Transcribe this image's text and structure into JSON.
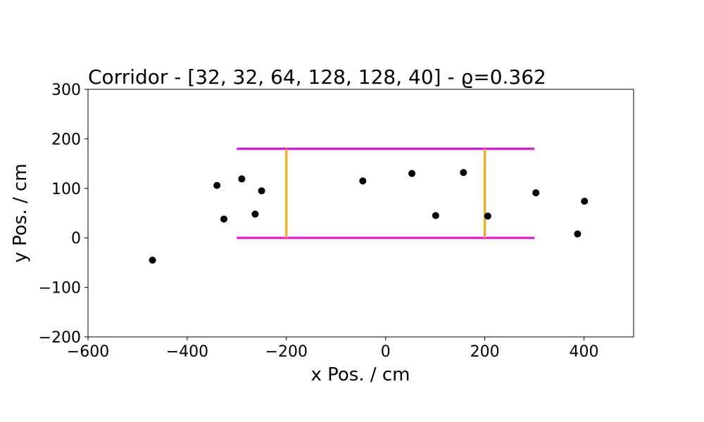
{
  "chart_data": {
    "type": "scatter",
    "title": "Corridor - [32, 32, 64, 128, 128, 40] - ϱ=0.362",
    "xlabel": "x Pos. / cm",
    "ylabel": "y Pos. / cm",
    "xlim": [
      -600,
      500
    ],
    "ylim": [
      -200,
      300
    ],
    "xticks": [
      -600,
      -400,
      -200,
      0,
      200,
      400
    ],
    "yticks": [
      -200,
      -100,
      0,
      100,
      200,
      300
    ],
    "xtick_labels": [
      "−600",
      "−400",
      "−200",
      "0",
      "200",
      "400"
    ],
    "ytick_labels": [
      "−200",
      "−100",
      "0",
      "100",
      "200",
      "300"
    ],
    "grid": false,
    "points": [
      {
        "x": -470,
        "y": -45
      },
      {
        "x": -340,
        "y": 106
      },
      {
        "x": -326,
        "y": 38
      },
      {
        "x": -290,
        "y": 119
      },
      {
        "x": -263,
        "y": 48
      },
      {
        "x": -250,
        "y": 95
      },
      {
        "x": -46,
        "y": 115
      },
      {
        "x": 53,
        "y": 130
      },
      {
        "x": 101,
        "y": 45
      },
      {
        "x": 157,
        "y": 132
      },
      {
        "x": 206,
        "y": 44
      },
      {
        "x": 303,
        "y": 91
      },
      {
        "x": 387,
        "y": 8
      },
      {
        "x": 401,
        "y": 74
      }
    ],
    "corridor_walls": [
      {
        "x": [
          -300,
          300
        ],
        "y": [
          180,
          180
        ]
      },
      {
        "x": [
          -300,
          300
        ],
        "y": [
          0,
          0
        ]
      }
    ],
    "corridor_gates": [
      {
        "x": [
          -200,
          -200
        ],
        "y": [
          0,
          180
        ]
      },
      {
        "x": [
          200,
          200
        ],
        "y": [
          0,
          180
        ]
      }
    ],
    "colors": {
      "points": "#000000",
      "walls": "#ff00ff",
      "gates": "#ffa500"
    }
  }
}
